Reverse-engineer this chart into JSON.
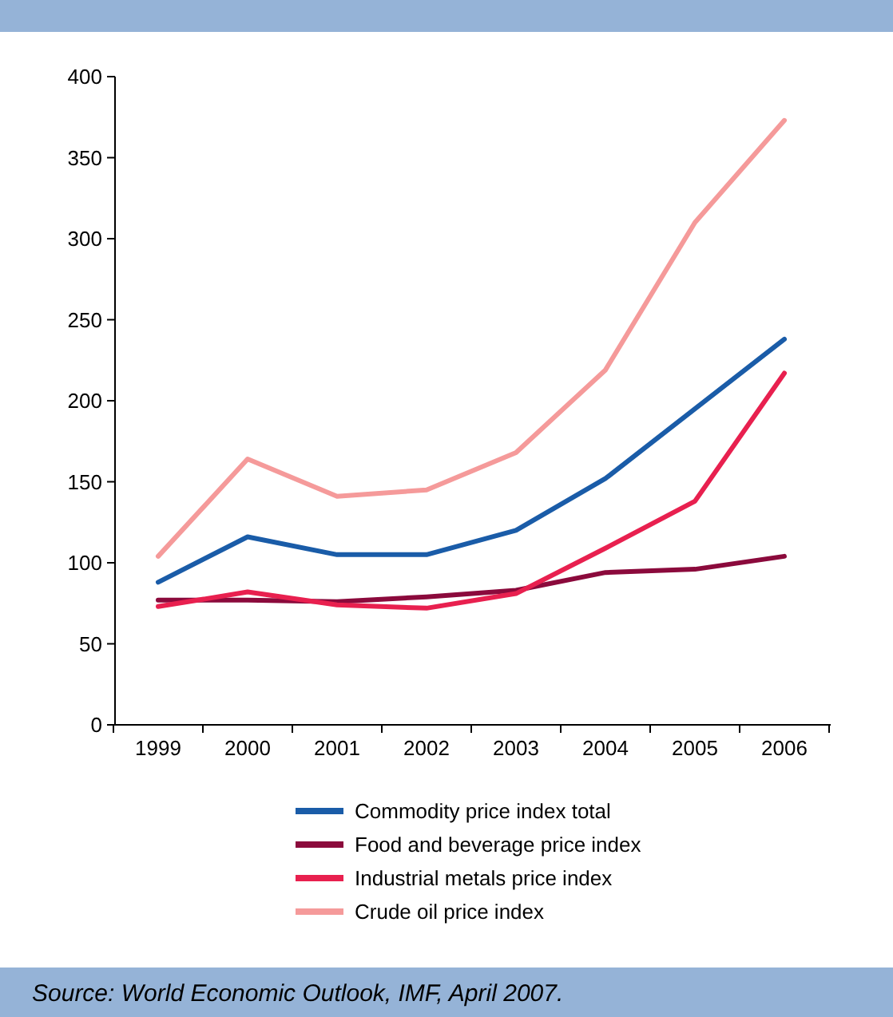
{
  "chart_data": {
    "type": "line",
    "categories": [
      "1999",
      "2000",
      "2001",
      "2002",
      "2003",
      "2004",
      "2005",
      "2006"
    ],
    "series": [
      {
        "name": "Commodity price index total",
        "color": "#1a5ca8",
        "values": [
          88,
          116,
          105,
          105,
          120,
          152,
          195,
          238
        ]
      },
      {
        "name": "Food and beverage price index",
        "color": "#8b0a3c",
        "values": [
          77,
          77,
          76,
          79,
          83,
          94,
          96,
          104
        ]
      },
      {
        "name": "Industrial metals price index",
        "color": "#e8204f",
        "values": [
          73,
          82,
          74,
          72,
          81,
          109,
          138,
          217
        ]
      },
      {
        "name": "Crude oil price index",
        "color": "#f59a9a",
        "values": [
          104,
          164,
          141,
          145,
          168,
          219,
          310,
          373
        ]
      }
    ],
    "ylim": [
      0,
      400
    ],
    "yticks": [
      0,
      50,
      100,
      150,
      200,
      250,
      300,
      350,
      400
    ],
    "grid": false,
    "legend": "bottom",
    "marker": "none",
    "line_style": "solid",
    "annotations": [
      "Source: World Economic Outlook, IMF, April 2007."
    ]
  }
}
